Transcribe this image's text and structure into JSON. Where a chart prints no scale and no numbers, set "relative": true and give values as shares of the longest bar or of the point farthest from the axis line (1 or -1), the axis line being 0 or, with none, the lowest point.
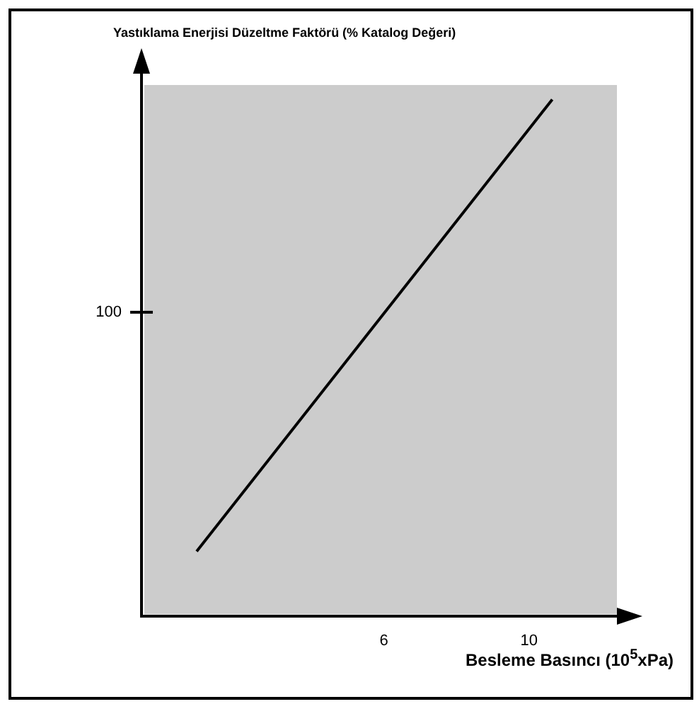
{
  "chart_data": {
    "type": "line",
    "title": "Yastıklama Enerjisi Düzeltme Faktörü (% Katalog Değeri)",
    "xlabel": "Besleme Basıncı (10$^{5}$xPa)",
    "relative": true,
    "x": [
      0.84,
      10.64
    ],
    "series": [
      {
        "color": "#000000",
        "values": [
          0.125,
          1
        ]
      }
    ],
    "xlim": [
      -0.68,
      12.5
    ],
    "xticks": [
      6,
      10
    ],
    "annotations": [
      "100"
    ],
    "grid": false,
    "legend": false,
    "marker": "none",
    "line_style": "solid"
  }
}
